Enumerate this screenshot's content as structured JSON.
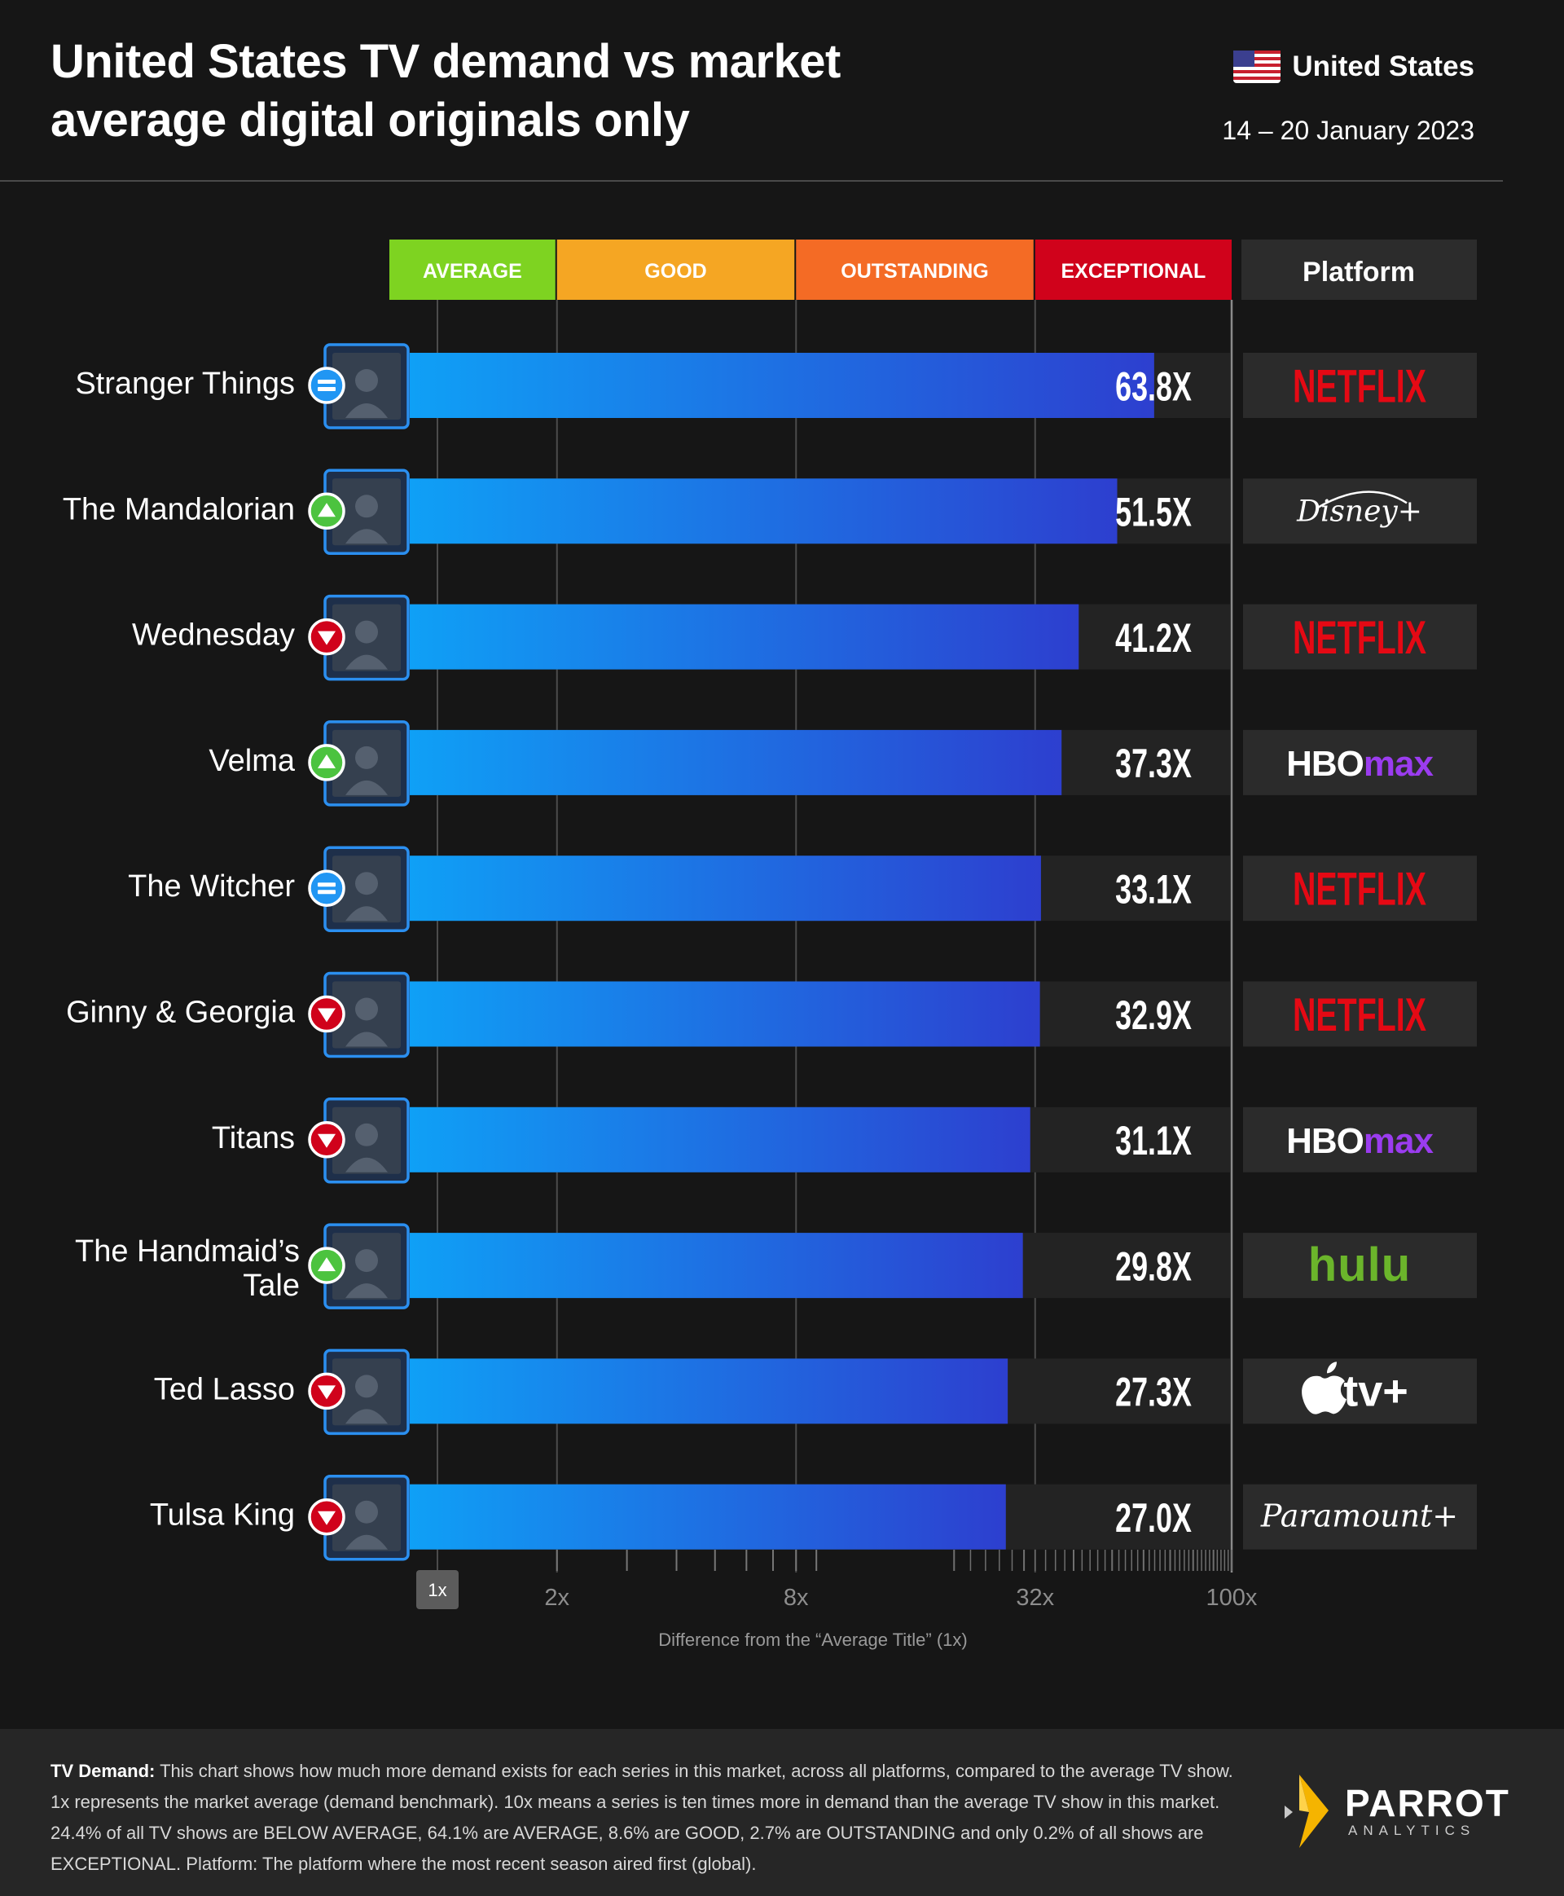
{
  "header": {
    "title": "United States TV demand vs market average digital originals only",
    "region": "United States",
    "date_range": "14 – 20 January 2023"
  },
  "colors": {
    "average": "#7ed321",
    "good": "#f5a623",
    "outstanding": "#f46b25",
    "exceptional": "#d0021b",
    "bar_start": "#0fa0f6",
    "bar_end": "#2d3fcf",
    "up": "#4cc33f",
    "down": "#d0021b",
    "same": "#2196f3"
  },
  "chart_data": {
    "type": "bar",
    "orientation": "horizontal",
    "x_scale": "log",
    "xlim": [
      1,
      100
    ],
    "xticks": [
      "1x",
      "2x",
      "8x",
      "32x",
      "100x"
    ],
    "xlabel": "Difference from the “Average Title” (1x)",
    "bands": [
      "AVERAGE",
      "GOOD",
      "OUTSTANDING",
      "EXCEPTIONAL"
    ],
    "platform_header": "Platform",
    "categories": [
      "Stranger Things",
      "The Mandalorian",
      "Wednesday",
      "Velma",
      "The Witcher",
      "Ginny & Georgia",
      "Titans",
      "The Handmaid’s Tale",
      "Ted Lasso",
      "Tulsa King"
    ],
    "values": [
      63.8,
      51.5,
      41.2,
      37.3,
      33.1,
      32.9,
      31.1,
      29.8,
      27.3,
      27.0
    ],
    "labels": [
      "63.8X",
      "51.5X",
      "41.2X",
      "37.3X",
      "33.1X",
      "32.9X",
      "31.1X",
      "29.8X",
      "27.3X",
      "27.0X"
    ],
    "trends": [
      "same",
      "up",
      "down",
      "up",
      "same",
      "down",
      "down",
      "up",
      "down",
      "down"
    ],
    "platforms": [
      "NETFLIX",
      "Disney+",
      "NETFLIX",
      "HBOmax",
      "NETFLIX",
      "NETFLIX",
      "HBOmax",
      "hulu",
      "tv+",
      "Paramount+"
    ]
  },
  "footer": {
    "lead": "TV Demand:",
    "text": "This chart shows how much more demand exists for each series in this market, across all platforms, compared to the average TV show. 1x represents the market average (demand benchmark). 10x means a series is ten times more in demand than the average TV show in this market. 24.4% of all TV shows are BELOW AVERAGE, 64.1% are AVERAGE, 8.6% are GOOD, 2.7% are OUTSTANDING and only 0.2% of all shows are EXCEPTIONAL. Platform: The platform where the most recent season aired first (global).",
    "brand": "PARROT",
    "brand_sub": "ANALYTICS"
  }
}
